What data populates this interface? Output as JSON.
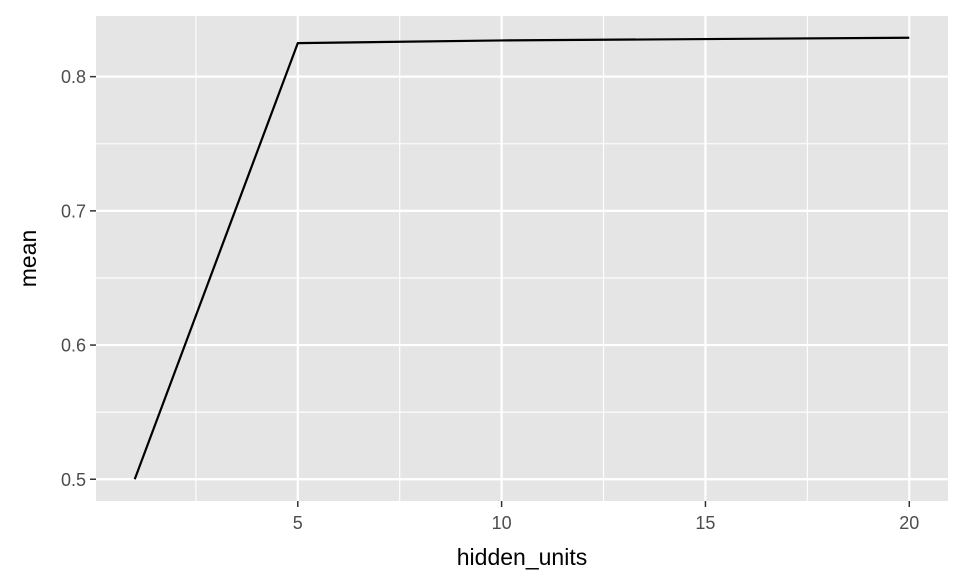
{
  "chart_data": {
    "type": "line",
    "title": "",
    "xlabel": "hidden_units",
    "ylabel": "mean",
    "x": [
      1,
      5,
      10,
      15,
      20
    ],
    "series": [
      {
        "values": [
          0.5,
          0.825,
          0.827,
          0.828,
          0.829
        ]
      }
    ],
    "xlim": [
      0.05,
      20.95
    ],
    "ylim": [
      0.4838,
      0.8452
    ],
    "x_major_ticks": [
      5,
      10,
      15,
      20
    ],
    "x_minor_ticks": [
      2.5,
      7.5,
      12.5,
      17.5
    ],
    "y_major_ticks": [
      0.5,
      0.6,
      0.7,
      0.8
    ],
    "y_minor_ticks": [
      0.55,
      0.65,
      0.75
    ],
    "x_tick_labels": [
      "5",
      "10",
      "15",
      "20"
    ],
    "y_tick_labels": [
      "0.5",
      "0.6",
      "0.7",
      "0.8"
    ],
    "grid": true,
    "legend": "none",
    "colors": {
      "panel_background": "#e5e5e5",
      "grid_line": "#ffffff",
      "line": "#000000",
      "tick_text": "#4d4d4d",
      "tick_mark": "#333333"
    }
  }
}
